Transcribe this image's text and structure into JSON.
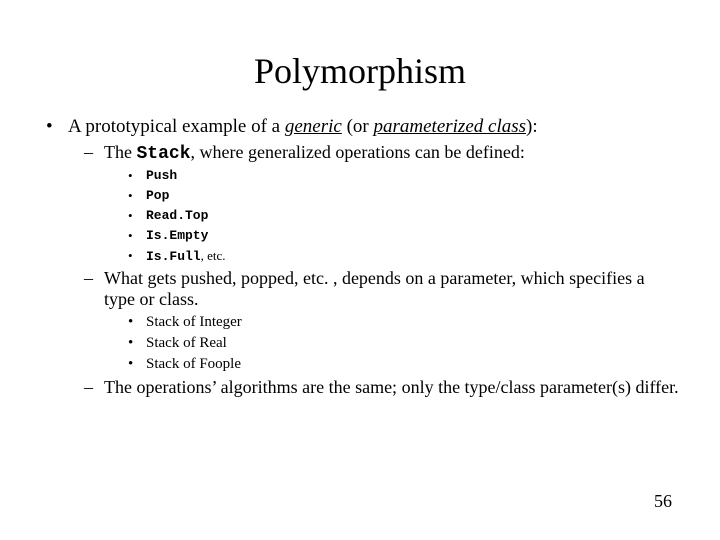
{
  "title": "Polymorphism",
  "l1": {
    "prefix": "A prototypical example of a ",
    "generic_word": "generic",
    "mid": " (or ",
    "param_word": "parameterized class",
    "suffix": "):"
  },
  "l2a": {
    "pre": "The ",
    "code": "Stack",
    "post": ", where generalized operations can be defined:"
  },
  "ops": {
    "push": "Push",
    "pop": "Pop",
    "readtop": "Read.Top",
    "isempty": "Is.Empty",
    "isfull": "Is.Full",
    "isfull_etc": ", etc."
  },
  "l2b": "What gets pushed, popped, etc. , depends on a parameter, which specifies a type or class.",
  "types": {
    "int": "Stack of Integer",
    "real": "Stack of Real",
    "foople": "Stack of Foople"
  },
  "l2c": "The operations’ algorithms are the same;  only the type/class parameter(s) differ.",
  "page_number": "56",
  "marks": {
    "disc": "•",
    "dash": "–",
    "dot": "•"
  }
}
